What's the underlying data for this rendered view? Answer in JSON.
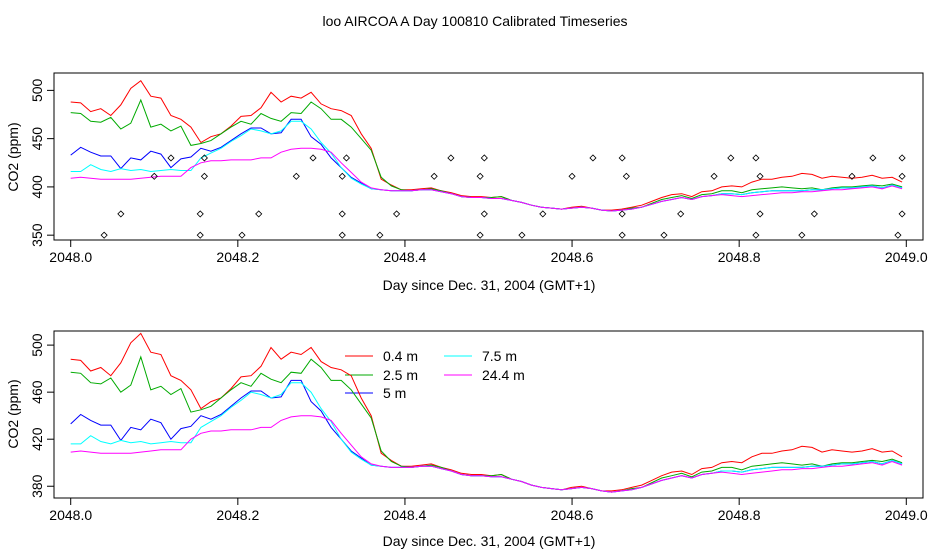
{
  "figure": {
    "title": "loo AIRCOA A  Day 100810  Calibrated Timeseries"
  },
  "chart_data": [
    {
      "type": "line",
      "title": "",
      "xlabel": "Day since Dec. 31, 2004 (GMT+1)",
      "ylabel": "CO2 (ppm)",
      "xlim": [
        2047.98,
        2049.02
      ],
      "ylim": [
        345,
        518
      ],
      "xticks": [
        "2048.0",
        "2048.2",
        "2048.4",
        "2048.6",
        "2048.8",
        "2049.0"
      ],
      "xtick_values": [
        2048.0,
        2048.2,
        2048.4,
        2048.6,
        2048.8,
        2049.0
      ],
      "yticks": [
        "350",
        "400",
        "450",
        "500"
      ],
      "ytick_values": [
        350,
        400,
        450,
        500
      ],
      "grid": false,
      "legend": "none",
      "points": {
        "marker": "open-diamond",
        "x": [
          2048.04,
          2048.06,
          2048.1,
          2048.12,
          2048.155,
          2048.155,
          2048.16,
          2048.16,
          2048.205,
          2048.225,
          2048.27,
          2048.29,
          2048.325,
          2048.325,
          2048.325,
          2048.33,
          2048.37,
          2048.39,
          2048.435,
          2048.455,
          2048.49,
          2048.495,
          2048.49,
          2048.495,
          2048.54,
          2048.565,
          2048.6,
          2048.625,
          2048.66,
          2048.66,
          2048.665,
          2048.66,
          2048.71,
          2048.73,
          2048.77,
          2048.79,
          2048.82,
          2048.825,
          2048.825,
          2048.82,
          2048.875,
          2048.89,
          2048.935,
          2048.96,
          2048.99,
          2048.995,
          2048.995,
          2048.995
        ],
        "y": [
          350,
          372,
          411,
          430,
          350,
          372,
          411,
          430,
          350,
          372,
          411,
          430,
          350,
          372,
          411,
          430,
          350,
          372,
          411,
          430,
          350,
          372,
          411,
          430,
          350,
          372,
          411,
          430,
          350,
          372,
          411,
          430,
          350,
          372,
          411,
          430,
          350,
          372,
          411,
          430,
          350,
          372,
          411,
          430,
          350,
          372,
          411,
          430
        ]
      },
      "series": [
        {
          "color": "#ff0000",
          "values": [
            488,
            487,
            478,
            481,
            474,
            485,
            502,
            510,
            494,
            492,
            474,
            470,
            462,
            446,
            452,
            455,
            463,
            473,
            474,
            482,
            498,
            488,
            494,
            492,
            498,
            486,
            481,
            479,
            474,
            455,
            440,
            408,
            402,
            397,
            397,
            398,
            399,
            396,
            394,
            391,
            390,
            390,
            389,
            390,
            386,
            384,
            381,
            379,
            378,
            377,
            379,
            380,
            378,
            376,
            376,
            377,
            379,
            381,
            385,
            389,
            392,
            393,
            390,
            395,
            396,
            400,
            401,
            400,
            405,
            408,
            408,
            410,
            411,
            414,
            413,
            409,
            411,
            410,
            409,
            410,
            412,
            409,
            410,
            405
          ]
        },
        {
          "color": "#00aa00",
          "values": [
            477,
            476,
            468,
            467,
            472,
            460,
            466,
            490,
            462,
            465,
            458,
            463,
            443,
            445,
            448,
            455,
            462,
            468,
            465,
            476,
            471,
            468,
            477,
            476,
            488,
            481,
            470,
            470,
            462,
            450,
            438,
            410,
            401,
            397,
            396,
            397,
            398,
            396,
            393,
            390,
            389,
            389,
            389,
            390,
            386,
            384,
            381,
            379,
            378,
            377,
            378,
            379,
            378,
            376,
            375,
            376,
            378,
            379,
            383,
            387,
            389,
            391,
            388,
            392,
            393,
            396,
            396,
            394,
            397,
            398,
            399,
            400,
            399,
            398,
            399,
            397,
            399,
            400,
            400,
            401,
            402,
            401,
            403,
            400
          ]
        },
        {
          "color": "#0000ff",
          "values": [
            433,
            441,
            436,
            432,
            432,
            419,
            430,
            428,
            437,
            434,
            420,
            429,
            431,
            440,
            437,
            441,
            448,
            455,
            461,
            461,
            455,
            456,
            470,
            470,
            452,
            444,
            430,
            420,
            410,
            404,
            398,
            397,
            396,
            396,
            396,
            397,
            397,
            395,
            393,
            390,
            389,
            389,
            388,
            388,
            386,
            384,
            381,
            379,
            378,
            377,
            378,
            379,
            378,
            376,
            375,
            376,
            377,
            379,
            382,
            385,
            387,
            389,
            387,
            390,
            391,
            393,
            393,
            392,
            394,
            395,
            396,
            396,
            396,
            396,
            397,
            397,
            398,
            399,
            399,
            400,
            401,
            399,
            402,
            399
          ]
        },
        {
          "color": "#00ffff",
          "values": [
            416,
            416,
            423,
            418,
            416,
            419,
            417,
            418,
            416,
            417,
            418,
            417,
            417,
            430,
            435,
            440,
            447,
            453,
            460,
            458,
            455,
            458,
            468,
            468,
            460,
            446,
            435,
            420,
            409,
            403,
            398,
            397,
            396,
            396,
            396,
            397,
            397,
            395,
            393,
            390,
            389,
            389,
            388,
            388,
            386,
            384,
            381,
            379,
            378,
            377,
            378,
            379,
            378,
            376,
            375,
            376,
            377,
            379,
            382,
            385,
            387,
            389,
            387,
            390,
            391,
            393,
            393,
            392,
            394,
            395,
            396,
            396,
            396,
            396,
            397,
            397,
            398,
            399,
            399,
            400,
            401,
            399,
            402,
            399
          ]
        },
        {
          "color": "#ff00ff",
          "values": [
            409,
            410,
            409,
            408,
            408,
            408,
            408,
            409,
            410,
            411,
            411,
            411,
            420,
            425,
            427,
            427,
            428,
            428,
            428,
            430,
            430,
            436,
            439,
            440,
            440,
            439,
            436,
            425,
            415,
            405,
            399,
            397,
            396,
            396,
            396,
            397,
            397,
            395,
            393,
            390,
            389,
            389,
            388,
            388,
            386,
            384,
            381,
            379,
            378,
            377,
            378,
            379,
            378,
            376,
            375,
            376,
            377,
            379,
            382,
            385,
            387,
            389,
            387,
            390,
            391,
            392,
            391,
            390,
            391,
            392,
            393,
            394,
            394,
            395,
            395,
            396,
            397,
            397,
            398,
            399,
            400,
            398,
            401,
            398
          ]
        }
      ]
    },
    {
      "type": "line",
      "title": "",
      "xlabel": "Day since Dec. 31, 2004 (GMT+1)",
      "ylabel": "CO2 (ppm)",
      "xlim": [
        2047.98,
        2049.02
      ],
      "ylim": [
        370,
        512
      ],
      "xticks": [
        "2048.0",
        "2048.2",
        "2048.4",
        "2048.6",
        "2048.8",
        "2049.0"
      ],
      "xtick_values": [
        2048.0,
        2048.2,
        2048.4,
        2048.6,
        2048.8,
        2049.0
      ],
      "yticks": [
        "380",
        "420",
        "460",
        "500"
      ],
      "ytick_values": [
        380,
        420,
        460,
        500
      ],
      "grid": false,
      "legend": "top-center",
      "series": [
        {
          "name": "0.4 m",
          "color": "#ff0000",
          "values": [
            488,
            487,
            478,
            481,
            474,
            485,
            502,
            510,
            494,
            492,
            474,
            470,
            462,
            446,
            452,
            455,
            463,
            473,
            474,
            482,
            498,
            488,
            494,
            492,
            498,
            486,
            481,
            479,
            474,
            455,
            440,
            408,
            402,
            397,
            397,
            398,
            399,
            396,
            394,
            391,
            390,
            390,
            389,
            390,
            386,
            384,
            381,
            379,
            378,
            377,
            379,
            380,
            378,
            376,
            376,
            377,
            379,
            381,
            385,
            389,
            392,
            393,
            390,
            395,
            396,
            400,
            401,
            400,
            405,
            408,
            408,
            410,
            411,
            414,
            413,
            409,
            411,
            410,
            409,
            410,
            412,
            409,
            410,
            405
          ]
        },
        {
          "name": "2.5 m",
          "color": "#00aa00",
          "values": [
            477,
            476,
            468,
            467,
            472,
            460,
            466,
            490,
            462,
            465,
            458,
            463,
            443,
            445,
            448,
            455,
            462,
            468,
            465,
            476,
            471,
            468,
            477,
            476,
            488,
            481,
            470,
            470,
            462,
            450,
            438,
            410,
            401,
            397,
            396,
            397,
            398,
            396,
            393,
            390,
            389,
            389,
            389,
            390,
            386,
            384,
            381,
            379,
            378,
            377,
            378,
            379,
            378,
            376,
            375,
            376,
            378,
            379,
            383,
            387,
            389,
            391,
            388,
            392,
            393,
            396,
            396,
            394,
            397,
            398,
            399,
            400,
            399,
            398,
            399,
            397,
            399,
            400,
            400,
            401,
            402,
            401,
            403,
            400
          ]
        },
        {
          "name": "5 m",
          "color": "#0000ff",
          "values": [
            433,
            441,
            436,
            432,
            432,
            419,
            430,
            428,
            437,
            434,
            420,
            429,
            431,
            440,
            437,
            441,
            448,
            455,
            461,
            461,
            455,
            456,
            470,
            470,
            452,
            444,
            430,
            420,
            410,
            404,
            398,
            397,
            396,
            396,
            396,
            397,
            397,
            395,
            393,
            390,
            389,
            389,
            388,
            388,
            386,
            384,
            381,
            379,
            378,
            377,
            378,
            379,
            378,
            376,
            375,
            376,
            377,
            379,
            382,
            385,
            387,
            389,
            387,
            390,
            391,
            393,
            393,
            392,
            394,
            395,
            396,
            396,
            396,
            396,
            397,
            397,
            398,
            399,
            399,
            400,
            401,
            399,
            402,
            399
          ]
        },
        {
          "name": "7.5 m",
          "color": "#00ffff",
          "values": [
            416,
            416,
            423,
            418,
            416,
            419,
            417,
            418,
            416,
            417,
            418,
            417,
            417,
            430,
            435,
            440,
            447,
            453,
            460,
            458,
            455,
            458,
            468,
            468,
            460,
            446,
            435,
            420,
            409,
            403,
            398,
            397,
            396,
            396,
            396,
            397,
            397,
            395,
            393,
            390,
            389,
            389,
            388,
            388,
            386,
            384,
            381,
            379,
            378,
            377,
            378,
            379,
            378,
            376,
            375,
            376,
            377,
            379,
            382,
            385,
            387,
            389,
            387,
            390,
            391,
            393,
            393,
            392,
            394,
            395,
            396,
            396,
            396,
            396,
            397,
            397,
            398,
            399,
            399,
            400,
            401,
            399,
            402,
            399
          ]
        },
        {
          "name": "24.4 m",
          "color": "#ff00ff",
          "values": [
            409,
            410,
            409,
            408,
            408,
            408,
            408,
            409,
            410,
            411,
            411,
            411,
            420,
            425,
            427,
            427,
            428,
            428,
            428,
            430,
            430,
            436,
            439,
            440,
            440,
            439,
            436,
            425,
            415,
            405,
            399,
            397,
            396,
            396,
            396,
            397,
            397,
            395,
            393,
            390,
            389,
            389,
            388,
            388,
            386,
            384,
            381,
            379,
            378,
            377,
            378,
            379,
            378,
            376,
            375,
            376,
            377,
            379,
            382,
            385,
            387,
            389,
            387,
            390,
            391,
            392,
            391,
            390,
            391,
            392,
            393,
            394,
            394,
            395,
            395,
            396,
            397,
            397,
            398,
            399,
            400,
            398,
            401,
            398
          ]
        }
      ]
    }
  ]
}
